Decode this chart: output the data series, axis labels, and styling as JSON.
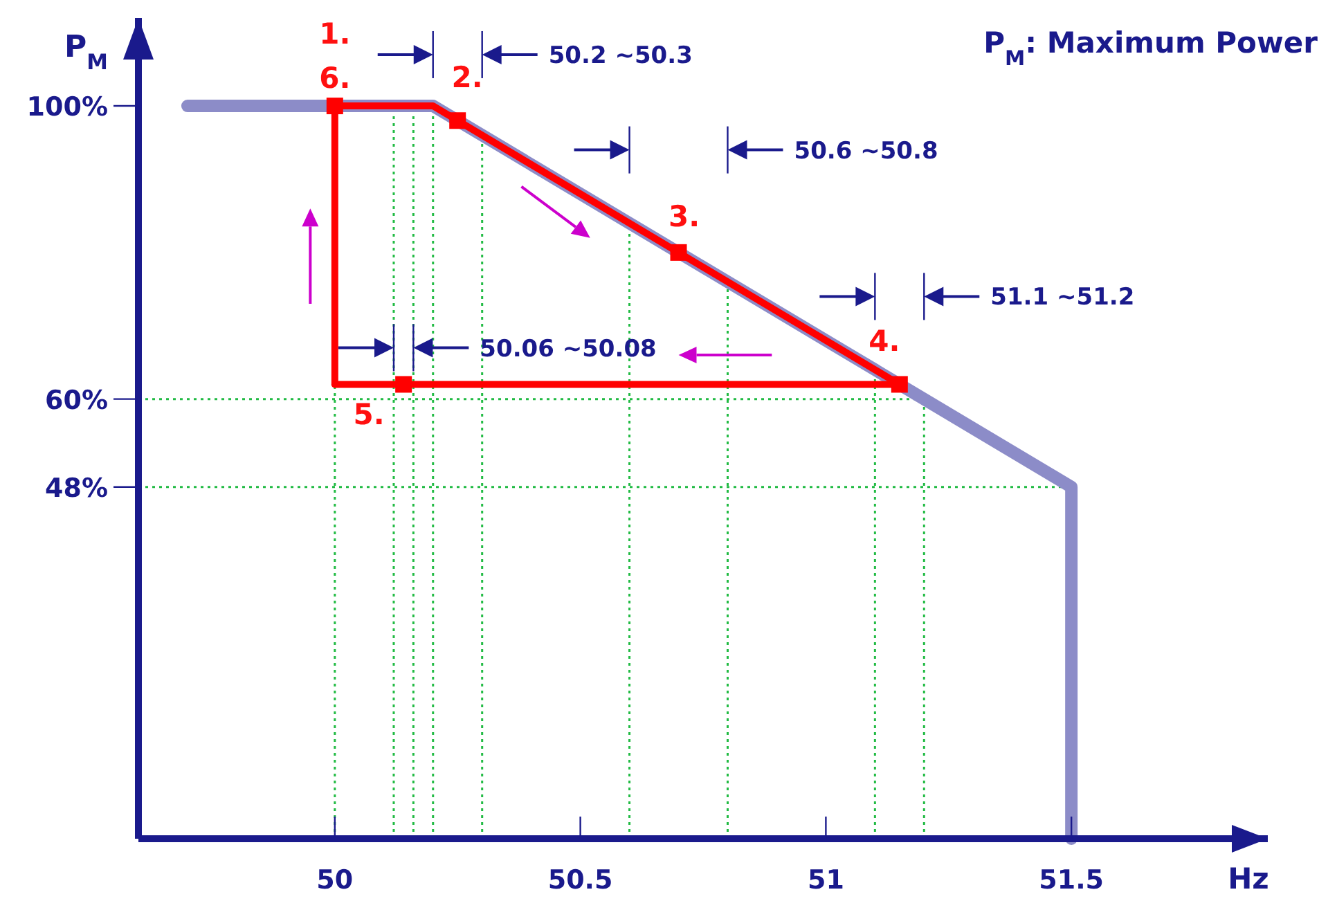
{
  "chart_data": {
    "type": "line",
    "title": "P$_{M}$: Maximum Power",
    "ylabel": "P$_{M}$",
    "xlabel": "Hz",
    "xlim": [
      49.6,
      51.9
    ],
    "ylim": [
      0,
      112
    ],
    "xticks": [
      50,
      50.5,
      51,
      51.5
    ],
    "yticks": [
      {
        "value": 100,
        "label": "100%"
      },
      {
        "value": 60,
        "label": "60%"
      },
      {
        "value": 48,
        "label": "48%"
      }
    ],
    "series": [
      {
        "color": "#8c8cc8",
        "x": [
          49.7,
          50.2,
          51.5,
          51.5
        ],
        "values": [
          100,
          100,
          48,
          0
        ],
        "marker": "none"
      },
      {
        "color": "#ff0000",
        "x": [
          50,
          50,
          50.2,
          51.15
        ],
        "values": [
          62,
          100,
          100,
          62
        ],
        "marker": "none"
      },
      {
        "color": "#ff0000",
        "x": [
          50,
          51.15
        ],
        "values": [
          62,
          62
        ],
        "marker": "none"
      },
      {
        "type": "scatter",
        "color": "#ff0000",
        "x": [
          50,
          50.25,
          50.7,
          51.15,
          50.14
        ],
        "values": [
          100,
          98,
          80,
          62,
          62
        ],
        "marker": "square"
      }
    ],
    "ref_lines": [
      {
        "axis": "x",
        "value": 50,
        "color": "#22bb44",
        "line_style": "dotted"
      },
      {
        "axis": "x",
        "value": 50.12,
        "color": "#22bb44",
        "line_style": "dotted"
      },
      {
        "axis": "x",
        "value": 50.16,
        "color": "#22bb44",
        "line_style": "dotted"
      },
      {
        "axis": "x",
        "value": 50.2,
        "color": "#22bb44",
        "line_style": "dotted"
      },
      {
        "axis": "x",
        "value": 50.3,
        "color": "#22bb44",
        "line_style": "dotted"
      },
      {
        "axis": "x",
        "value": 50.6,
        "color": "#22bb44",
        "line_style": "dotted"
      },
      {
        "axis": "x",
        "value": 50.8,
        "color": "#22bb44",
        "line_style": "dotted"
      },
      {
        "axis": "x",
        "value": 51.1,
        "color": "#22bb44",
        "line_style": "dotted"
      },
      {
        "axis": "x",
        "value": 51.2,
        "color": "#22bb44",
        "line_style": "dotted"
      },
      {
        "axis": "y",
        "value": 60,
        "color": "#22bb44",
        "line_style": "dotted"
      },
      {
        "axis": "y",
        "value": 48,
        "color": "#22bb44",
        "line_style": "dotted"
      }
    ],
    "annotations": [
      {
        "text": "1.",
        "x": 50,
        "y": 100
      },
      {
        "text": "6.",
        "x": 50,
        "y": 100
      },
      {
        "text": "2.",
        "x": 50.25,
        "y": 98
      },
      {
        "text": "3.",
        "x": 50.7,
        "y": 80
      },
      {
        "text": "4.",
        "x": 51.15,
        "y": 62
      },
      {
        "text": "5.",
        "x": 50.14,
        "y": 62
      },
      "50.2 ~50.3",
      "50.6 ~50.8",
      "51.1 ~51.2",
      "50.06 ~50.08"
    ]
  }
}
